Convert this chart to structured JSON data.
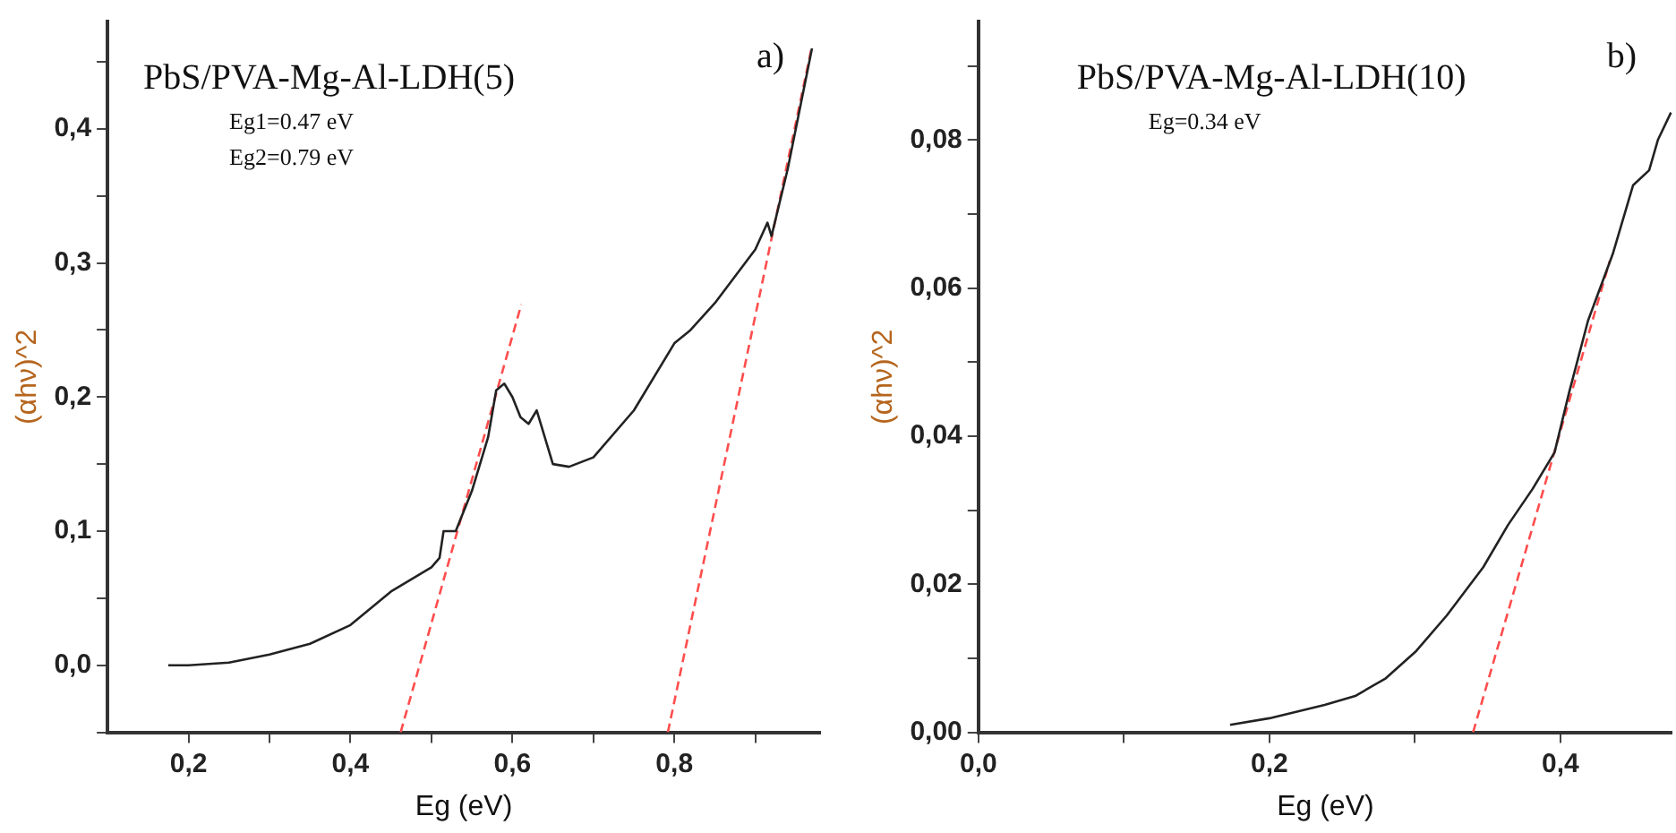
{
  "chart_data": [
    {
      "type": "line",
      "title": "PbS/PVA-Mg-Al-LDH(5)",
      "xlabel": "Eg (eV)",
      "ylabel": "(αhν)^2",
      "annotations": [
        "a)",
        "Eg1=0.47 eV",
        "Eg2=0.79 eV"
      ],
      "xlim": [
        0.1,
        0.98
      ],
      "ylim": [
        -0.05,
        0.48
      ],
      "xticks": [
        {
          "value": 0.2,
          "label": "0,2"
        },
        {
          "value": 0.3,
          "label": null
        },
        {
          "value": 0.4,
          "label": "0,4"
        },
        {
          "value": 0.5,
          "label": null
        },
        {
          "value": 0.6,
          "label": "0,6"
        },
        {
          "value": 0.7,
          "label": null
        },
        {
          "value": 0.8,
          "label": "0,8"
        },
        {
          "value": 0.9,
          "label": null
        }
      ],
      "yticks": [
        {
          "value": -0.05,
          "label": null
        },
        {
          "value": 0,
          "label": "0,0"
        },
        {
          "value": 0.05,
          "label": null
        },
        {
          "value": 0.1,
          "label": "0,1"
        },
        {
          "value": 0.15,
          "label": null
        },
        {
          "value": 0.2,
          "label": "0,2"
        },
        {
          "value": 0.25,
          "label": null
        },
        {
          "value": 0.3,
          "label": "0,3"
        },
        {
          "value": 0.35,
          "label": null
        },
        {
          "value": 0.4,
          "label": "0,4"
        },
        {
          "value": 0.45,
          "label": null
        }
      ],
      "grid": false,
      "legend": false,
      "marker": "none",
      "series": [
        {
          "type": "line",
          "color": "#222222",
          "line_style": "solid",
          "x": [
            0.175,
            0.2,
            0.25,
            0.3,
            0.35,
            0.4,
            0.45,
            0.5,
            0.51,
            0.515,
            0.53,
            0.55,
            0.57,
            0.58,
            0.59,
            0.6,
            0.61,
            0.62,
            0.63,
            0.64,
            0.65,
            0.67,
            0.7,
            0.75,
            0.8,
            0.82,
            0.85,
            0.9,
            0.915,
            0.92,
            0.94,
            0.97
          ],
          "values": [
            0,
            0,
            0.002,
            0.008,
            0.016,
            0.03,
            0.055,
            0.073,
            0.08,
            0.1,
            0.1,
            0.13,
            0.17,
            0.205,
            0.21,
            0.2,
            0.185,
            0.18,
            0.19,
            0.17,
            0.15,
            0.148,
            0.155,
            0.19,
            0.24,
            0.25,
            0.27,
            0.31,
            0.33,
            0.32,
            0.37,
            0.46
          ]
        },
        {
          "type": "line",
          "color": "#ff4d4d",
          "line_style": "dashed",
          "x": [
            0.462,
            0.611
          ],
          "values": [
            -0.05,
            0.269
          ]
        },
        {
          "type": "line",
          "color": "#ff4d4d",
          "line_style": "dashed",
          "x": [
            0.792,
            0.969
          ],
          "values": [
            -0.05,
            0.459
          ]
        }
      ]
    },
    {
      "type": "line",
      "title": "PbS/PVA-Mg-Al-LDH(10)",
      "xlabel": "Eg (eV)",
      "ylabel": "(αhν)^2",
      "annotations": [
        "b)",
        "Eg=0.34 eV"
      ],
      "xlim": [
        0,
        0.477
      ],
      "ylim": [
        0,
        0.096
      ],
      "xticks": [
        {
          "value": 0,
          "label": "0,0"
        },
        {
          "value": 0.1,
          "label": null
        },
        {
          "value": 0.2,
          "label": "0,2"
        },
        {
          "value": 0.3,
          "label": null
        },
        {
          "value": 0.4,
          "label": "0,4"
        }
      ],
      "yticks": [
        {
          "value": 0,
          "label": "0,00"
        },
        {
          "value": 0.01,
          "label": null
        },
        {
          "value": 0.02,
          "label": "0,02"
        },
        {
          "value": 0.03,
          "label": null
        },
        {
          "value": 0.04,
          "label": "0,04"
        },
        {
          "value": 0.05,
          "label": null
        },
        {
          "value": 0.06,
          "label": "0,06"
        },
        {
          "value": 0.07,
          "label": null
        },
        {
          "value": 0.08,
          "label": "0,08"
        },
        {
          "value": 0.09,
          "label": null
        }
      ],
      "grid": false,
      "legend": false,
      "marker": "none",
      "series": [
        {
          "type": "line",
          "color": "#222222",
          "line_style": "solid",
          "x": [
            0.173,
            0.2,
            0.238,
            0.259,
            0.28,
            0.301,
            0.322,
            0.347,
            0.364,
            0.381,
            0.396,
            0.406,
            0.419,
            0.436,
            0.45,
            0.461,
            0.467,
            0.476
          ],
          "values": [
            0.001,
            0.0019,
            0.0037,
            0.0049,
            0.0073,
            0.011,
            0.0158,
            0.0223,
            0.028,
            0.0329,
            0.0378,
            0.0459,
            0.0556,
            0.0646,
            0.0739,
            0.0759,
            0.08,
            0.0837
          ]
        },
        {
          "type": "line",
          "color": "#ff4d4d",
          "line_style": "dashed",
          "x": [
            0.34,
            0.434
          ],
          "values": [
            0,
            0.0637
          ]
        }
      ]
    }
  ]
}
